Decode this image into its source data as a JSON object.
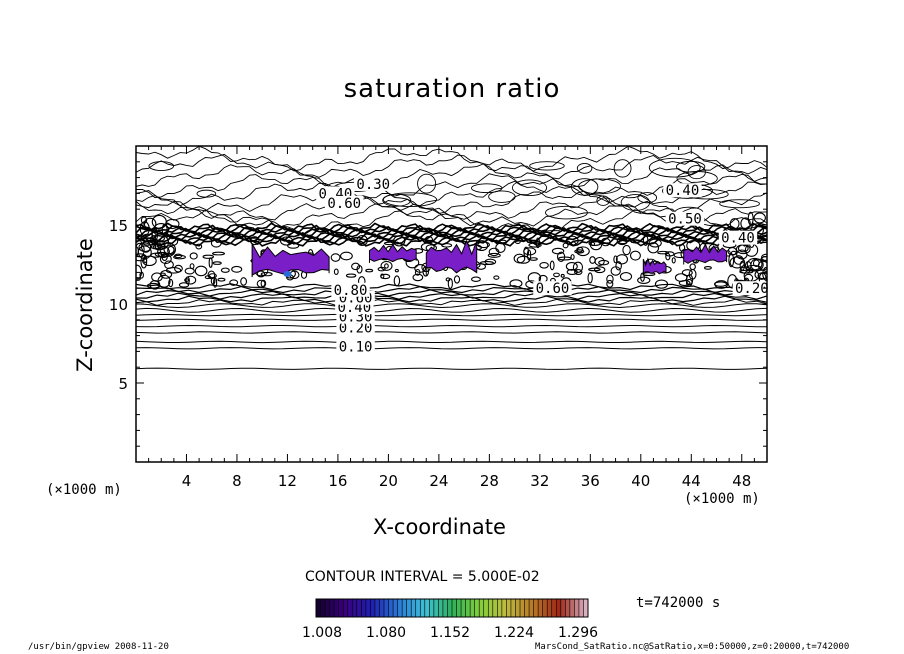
{
  "chart_data": {
    "type": "contour",
    "title": "saturation ratio",
    "xlabel": "X-coordinate",
    "ylabel": "Z-coordinate",
    "x_unit_left": "(×1000 m)",
    "x_unit_right": "(×1000 m)",
    "xlim": [
      0,
      50
    ],
    "ylim": [
      0,
      20
    ],
    "x_ticks": [
      4,
      8,
      12,
      16,
      20,
      24,
      28,
      32,
      36,
      40,
      44,
      48
    ],
    "y_ticks": [
      5,
      10,
      15
    ],
    "contour_interval": "CONTOUR INTERVAL = 5.000E-02",
    "contour_labels": [
      {
        "label": "0.10",
        "x": 17.4,
        "z": 7.3
      },
      {
        "label": "0.20",
        "x": 17.4,
        "z": 8.5
      },
      {
        "label": "0.30",
        "x": 17.4,
        "z": 9.2
      },
      {
        "label": "0.40",
        "x": 17.3,
        "z": 9.8
      },
      {
        "label": "0.60",
        "x": 17.4,
        "z": 10.4
      },
      {
        "label": "0.80",
        "x": 17.0,
        "z": 10.9
      },
      {
        "label": "0.60",
        "x": 33.0,
        "z": 11.0
      },
      {
        "label": "0.30",
        "x": 18.8,
        "z": 17.6
      },
      {
        "label": "0.40",
        "x": 15.8,
        "z": 17.0
      },
      {
        "label": "0.60",
        "x": 16.5,
        "z": 16.4
      },
      {
        "label": "0.40",
        "x": 43.3,
        "z": 17.2
      },
      {
        "label": "0.50",
        "x": 43.5,
        "z": 15.4
      },
      {
        "label": "0.40",
        "x": 47.7,
        "z": 14.2
      },
      {
        "label": "0.20",
        "x": 48.8,
        "z": 11.0
      }
    ],
    "supersaturated_regions": [
      {
        "x": [
          9.2,
          15.3
        ],
        "z": [
          11.7,
          14.2
        ]
      },
      {
        "x": [
          18.5,
          22.2
        ],
        "z": [
          12.6,
          14.0
        ]
      },
      {
        "x": [
          23.0,
          27.0
        ],
        "z": [
          11.8,
          14.5
        ]
      },
      {
        "x": [
          40.2,
          42.0
        ],
        "z": [
          11.8,
          13.1
        ]
      },
      {
        "x": [
          43.4,
          46.8
        ],
        "z": [
          12.5,
          14.0
        ]
      }
    ],
    "colorbar": {
      "ticks": [
        "1.008",
        "1.080",
        "1.152",
        "1.224",
        "1.296"
      ],
      "colors": [
        "#160030",
        "#3a0080",
        "#1f1fb0",
        "#2a7ad8",
        "#3ec0d8",
        "#2fb05a",
        "#7fcf3a",
        "#bcbc40",
        "#b87a28",
        "#a02818",
        "#d8b0c0"
      ]
    },
    "time": "t=742000 s"
  },
  "footer": {
    "left": "/usr/bin/gpview   2008-11-20",
    "right": "MarsCond_SatRatio.nc@SatRatio,x=0:50000,z=0:20000,t=742000"
  },
  "colors": {
    "region_fill": "#7a1fc8",
    "region_core": "#2a6ad8"
  }
}
